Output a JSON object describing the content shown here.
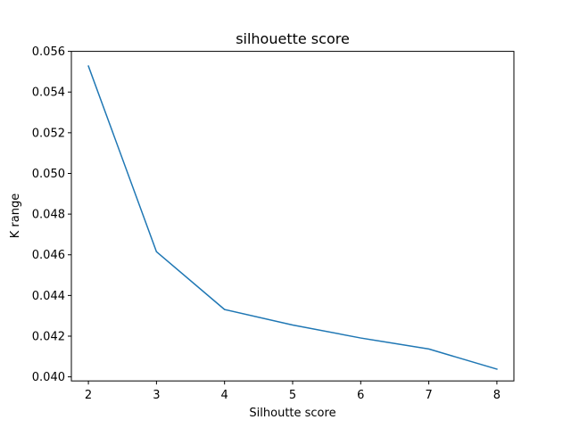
{
  "chart_data": {
    "type": "line",
    "title": "silhouette score",
    "xlabel": "Silhoutte score",
    "ylabel": "K range",
    "x": [
      2,
      3,
      4,
      5,
      6,
      7,
      8
    ],
    "series": [
      {
        "values": [
          0.05528,
          0.04615,
          0.04331,
          0.04255,
          0.04191,
          0.04137,
          0.04038
        ],
        "color": "#1f77b4"
      }
    ],
    "xlim": [
      1.75,
      8.25
    ],
    "ylim": [
      0.0398,
      0.056
    ],
    "xticks": [
      "2",
      "3",
      "4",
      "5",
      "6",
      "7",
      "8"
    ],
    "yticks": [
      "0.040",
      "0.042",
      "0.044",
      "0.046",
      "0.048",
      "0.050",
      "0.052",
      "0.054",
      "0.056"
    ],
    "grid": false,
    "legend": "none"
  }
}
